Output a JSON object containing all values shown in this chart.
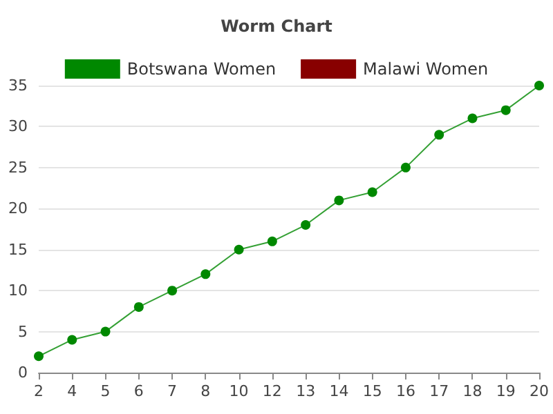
{
  "chart_data": {
    "type": "line",
    "title": "Worm Chart",
    "categories": [
      "2",
      "4",
      "5",
      "6",
      "7",
      "8",
      "10",
      "12",
      "13",
      "14",
      "15",
      "16",
      "17",
      "18",
      "19",
      "20"
    ],
    "series": [
      {
        "name": "Botswana Women",
        "color": "#008800",
        "values": [
          2,
          4,
          5,
          8,
          10,
          12,
          15,
          16,
          18,
          21,
          22,
          25,
          29,
          31,
          32,
          35
        ]
      },
      {
        "name": "Malawi Women",
        "color": "#880000",
        "values": [
          null,
          null,
          null,
          null,
          null,
          null,
          null,
          null,
          null,
          null,
          null,
          null,
          null,
          null,
          null,
          null
        ]
      }
    ],
    "ylim": [
      0,
      35
    ],
    "yticks": [
      0,
      5,
      10,
      15,
      20,
      25,
      30,
      35
    ],
    "grid": "y",
    "legend": "top",
    "marker": "circle",
    "line_style": "solid"
  }
}
